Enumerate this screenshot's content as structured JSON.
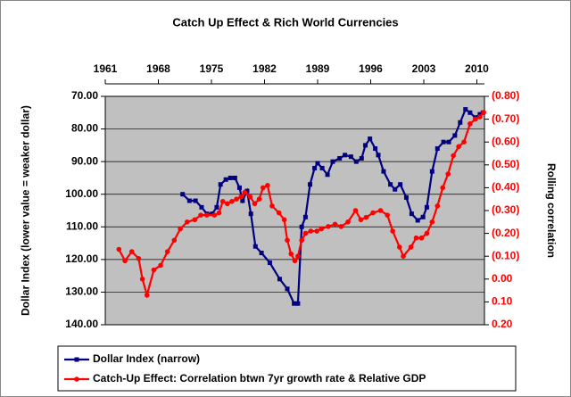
{
  "chart_data": {
    "type": "line",
    "title": "Catch Up Effect & Rich World Currencies",
    "ylabel": "Dollar Index (lower value = weaker dollar)",
    "y2label": "Rolling correlation",
    "xlim": [
      1961,
      2011
    ],
    "xticks": [
      1961,
      1968,
      1975,
      1982,
      1989,
      1996,
      2003,
      2010
    ],
    "ylim": [
      140,
      70
    ],
    "yticks": [
      {
        "value": 70,
        "label": "70.00"
      },
      {
        "value": 80,
        "label": "80.00"
      },
      {
        "value": 90,
        "label": "90.00"
      },
      {
        "value": 100,
        "label": "100.00"
      },
      {
        "value": 110,
        "label": "110.00"
      },
      {
        "value": 120,
        "label": "120.00"
      },
      {
        "value": 130,
        "label": "130.00"
      },
      {
        "value": 140,
        "label": "140.00"
      }
    ],
    "y2lim": [
      0.2,
      -0.8
    ],
    "y2ticks": [
      {
        "value": -0.8,
        "label": "(0.80)"
      },
      {
        "value": -0.7,
        "label": "(0.70)"
      },
      {
        "value": -0.6,
        "label": "(0.60)"
      },
      {
        "value": -0.5,
        "label": "(0.50)"
      },
      {
        "value": -0.4,
        "label": "(0.40)"
      },
      {
        "value": -0.3,
        "label": "(0.30)"
      },
      {
        "value": -0.2,
        "label": "(0.20)"
      },
      {
        "value": -0.1,
        "label": "(0.10)"
      },
      {
        "value": 0,
        "label": "0.00"
      },
      {
        "value": 0.1,
        "label": "0.10"
      },
      {
        "value": 0.2,
        "label": "0.20"
      }
    ],
    "grid": true,
    "legend": "bottom",
    "series": [
      {
        "name": "Dollar Index (narrow)",
        "color": "#000080",
        "marker": "square",
        "x": [
          1971.2,
          1972.1,
          1972.9,
          1973.7,
          1974.4,
          1975.1,
          1975.7,
          1976.2,
          1976.9,
          1977.5,
          1978.1,
          1978.7,
          1979.1,
          1979.7,
          1980.2,
          1980.8,
          1981.6,
          1982.7,
          1984.0,
          1985.0,
          1985.9,
          1986.4,
          1986.9,
          1987.4,
          1988.0,
          1988.6,
          1989.0,
          1989.6,
          1990.3,
          1991.0,
          1991.9,
          1992.6,
          1993.4,
          1994.1,
          1994.8,
          1995.3,
          1995.9,
          1996.6,
          1997.0,
          1997.7,
          1998.6,
          1999.2,
          1999.9,
          2000.7,
          2001.4,
          2002.2,
          2002.9,
          2003.4,
          2004.1,
          2004.8,
          2005.6,
          2006.3,
          2007.1,
          2007.8,
          2008.5,
          2009.1,
          2009.8,
          2010.4,
          2010.8
        ],
        "values": [
          100,
          102,
          102,
          104,
          106,
          106,
          104,
          97,
          95.5,
          95,
          95,
          98,
          102,
          99,
          106,
          116,
          118,
          121,
          126,
          129,
          133.5,
          133.5,
          110,
          107,
          97,
          92,
          90.5,
          92,
          94,
          90,
          89,
          88,
          88.5,
          90,
          89,
          85,
          83,
          86,
          88,
          93,
          97,
          98.5,
          97,
          101,
          106,
          108,
          107,
          104,
          93,
          86,
          84,
          84,
          82,
          78,
          74,
          75,
          76.5,
          75.5,
          75
        ]
      },
      {
        "name": "Catch-Up Effect: Correlation btwn 7yr growth rate & Relative GDP",
        "color": "#ff0000",
        "marker": "circle",
        "axis": "y2",
        "x": [
          1962.8,
          1963.6,
          1964.5,
          1965.4,
          1965.9,
          1966.5,
          1967.4,
          1968.3,
          1969.2,
          1970.1,
          1970.9,
          1971.8,
          1972.8,
          1973.6,
          1974.4,
          1975.4,
          1976.0,
          1976.5,
          1977.1,
          1977.7,
          1978.3,
          1978.9,
          1979.4,
          1980.1,
          1980.7,
          1981.3,
          1981.8,
          1982.4,
          1983.0,
          1983.9,
          1984.6,
          1985.0,
          1985.5,
          1986.0,
          1986.4,
          1986.9,
          1987.4,
          1988.1,
          1988.9,
          1989.5,
          1990.4,
          1991.3,
          1992.1,
          1993.0,
          1994.0,
          1994.7,
          1995.4,
          1996.3,
          1997.3,
          1998.2,
          1998.9,
          1999.8,
          2000.3,
          2001.3,
          2002.0,
          2002.7,
          2003.4,
          2004.1,
          2004.8,
          2005.5,
          2006.2,
          2006.9,
          2007.6,
          2008.3,
          2009.1,
          2009.8,
          2010.4,
          2010.9
        ],
        "values": [
          -0.13,
          -0.08,
          -0.12,
          -0.09,
          0,
          0.07,
          -0.04,
          -0.06,
          -0.12,
          -0.17,
          -0.22,
          -0.25,
          -0.26,
          -0.28,
          -0.28,
          -0.28,
          -0.29,
          -0.34,
          -0.33,
          -0.34,
          -0.35,
          -0.36,
          -0.38,
          -0.36,
          -0.33,
          -0.35,
          -0.4,
          -0.41,
          -0.32,
          -0.29,
          -0.26,
          -0.17,
          -0.11,
          -0.08,
          -0.1,
          -0.17,
          -0.2,
          -0.21,
          -0.21,
          -0.22,
          -0.23,
          -0.24,
          -0.23,
          -0.25,
          -0.3,
          -0.26,
          -0.27,
          -0.29,
          -0.3,
          -0.28,
          -0.21,
          -0.14,
          -0.1,
          -0.14,
          -0.18,
          -0.18,
          -0.2,
          -0.25,
          -0.32,
          -0.4,
          -0.46,
          -0.54,
          -0.58,
          -0.6,
          -0.68,
          -0.7,
          -0.71,
          -0.73
        ]
      }
    ]
  }
}
